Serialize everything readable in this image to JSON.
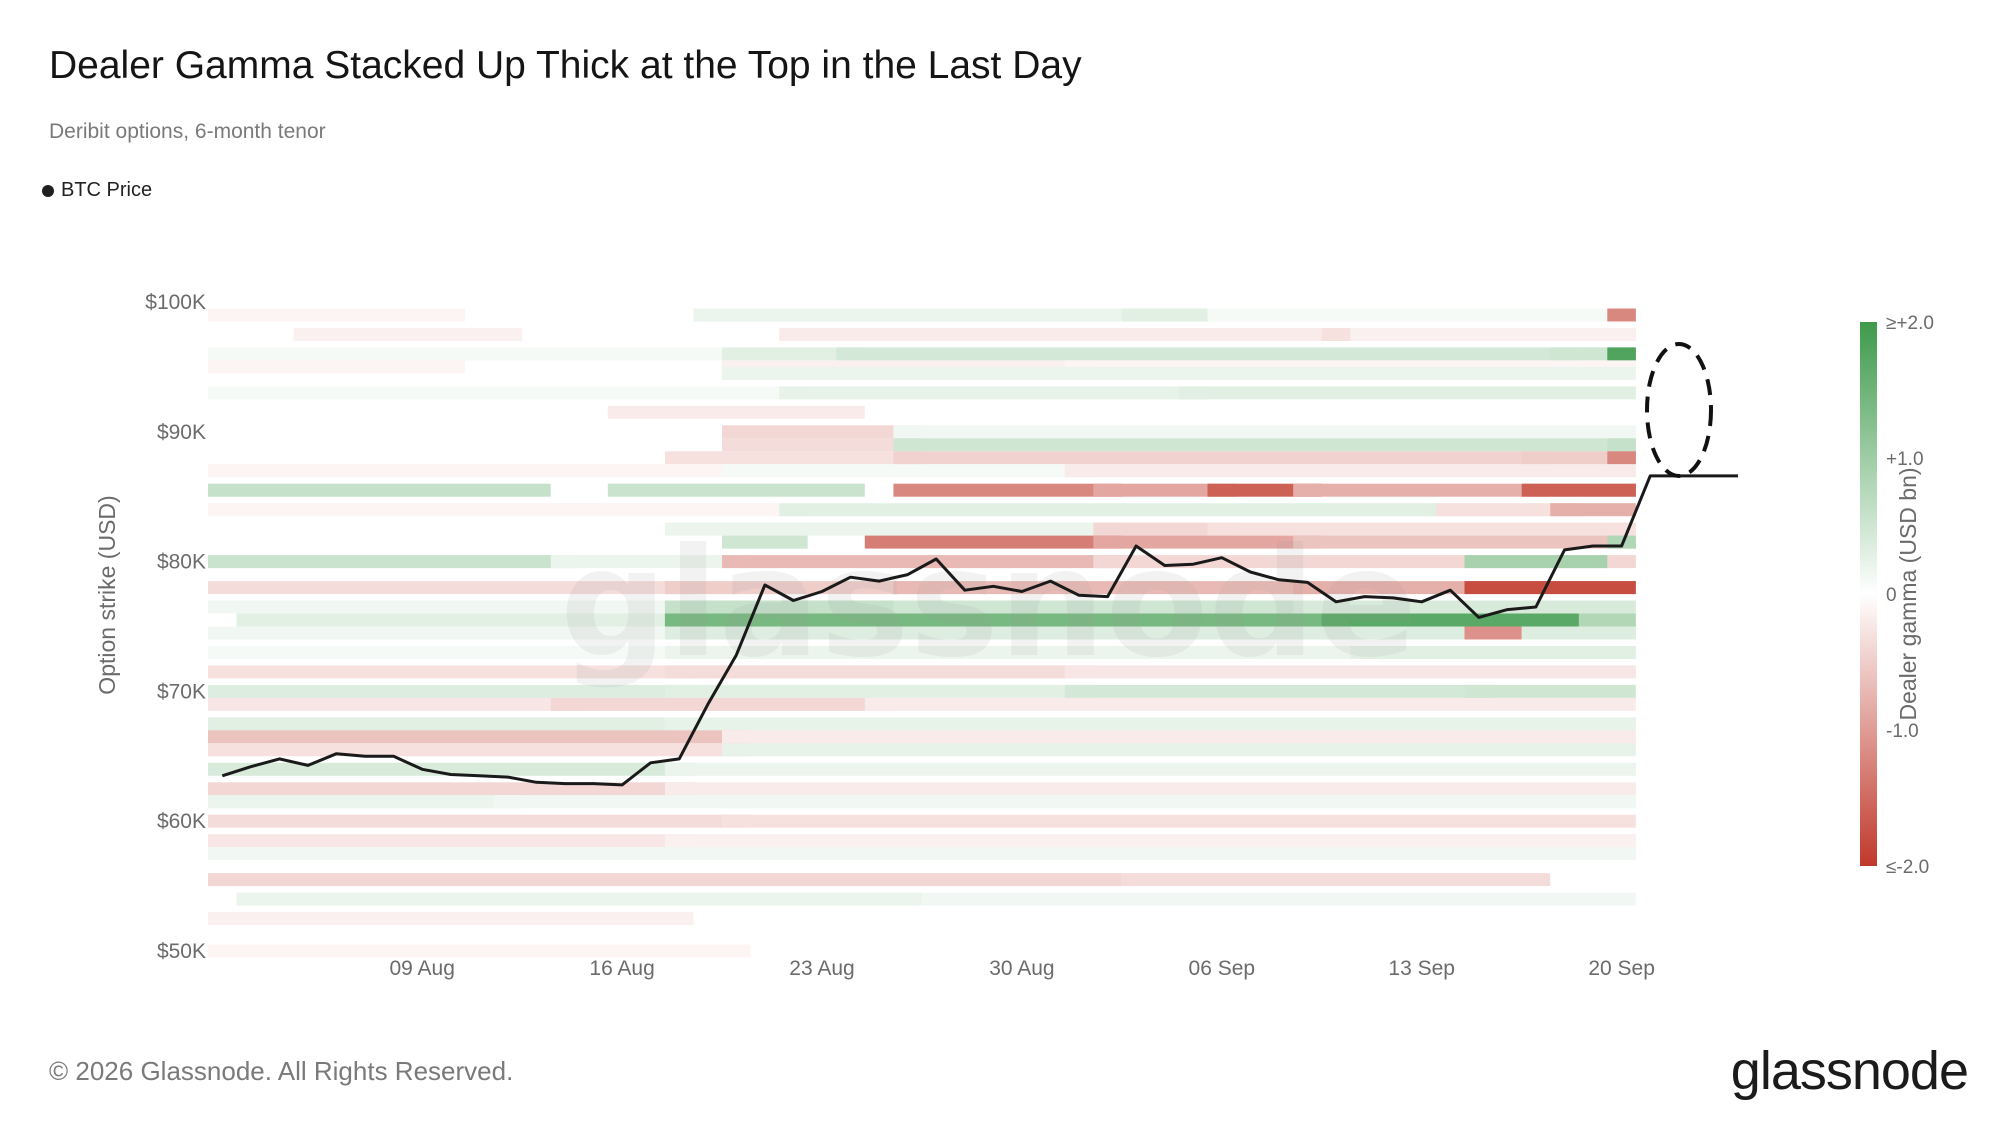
{
  "header": {
    "title": "Dealer Gamma Stacked Up Thick at the Top in the Last Day",
    "subtitle": "Deribit options, 6-month tenor"
  },
  "legend": {
    "label": "BTC Price",
    "color": "#1f1f1f"
  },
  "footer": {
    "copyright": "© 2026 Glassnode. All Rights Reserved.",
    "logo_text": "glassnode"
  },
  "watermark": "glassnode",
  "colors": {
    "positive": "#3e9a4b",
    "negative": "#c0392b",
    "neutral": "#ffffff",
    "price_line": "#1a1a1a"
  },
  "chart_data": {
    "type": "heatmap",
    "title": "Dealer Gamma Stacked Up Thick at the Top in the Last Day",
    "subtitle": "Deribit options, 6-month tenor",
    "ylabel": "Option strike (USD)",
    "ylim": [
      50000,
      100000
    ],
    "y_ticks": [
      "$50K",
      "$60K",
      "$70K",
      "$80K",
      "$90K",
      "$100K"
    ],
    "x_ticks": [
      "09 Aug",
      "16 Aug",
      "23 Aug",
      "30 Aug",
      "06 Sep",
      "13 Sep",
      "20 Sep"
    ],
    "x_range": [
      "2024-08-02",
      "2024-09-22"
    ],
    "colorbar": {
      "label": "Dealer gamma (USD bn)",
      "min": -2.0,
      "max": 2.0,
      "ticks": [
        "≥+2.0",
        "+1.0",
        "0",
        "-1.0",
        "≤-2.0"
      ]
    },
    "annotation": "dashed ellipse around top strikes on the last day",
    "series": [
      {
        "name": "BTC Price",
        "type": "line",
        "x": [
          "2024-08-02",
          "2024-08-03",
          "2024-08-04",
          "2024-08-05",
          "2024-08-06",
          "2024-08-07",
          "2024-08-08",
          "2024-08-09",
          "2024-08-10",
          "2024-08-11",
          "2024-08-12",
          "2024-08-13",
          "2024-08-14",
          "2024-08-15",
          "2024-08-16",
          "2024-08-17",
          "2024-08-18",
          "2024-08-19",
          "2024-08-20",
          "2024-08-21",
          "2024-08-22",
          "2024-08-23",
          "2024-08-24",
          "2024-08-25",
          "2024-08-26",
          "2024-08-27",
          "2024-08-28",
          "2024-08-29",
          "2024-08-30",
          "2024-08-31",
          "2024-09-01",
          "2024-09-02",
          "2024-09-03",
          "2024-09-04",
          "2024-09-05",
          "2024-09-06",
          "2024-09-07",
          "2024-09-08",
          "2024-09-09",
          "2024-09-10",
          "2024-09-11",
          "2024-09-12",
          "2024-09-13",
          "2024-09-14",
          "2024-09-15",
          "2024-09-16",
          "2024-09-17",
          "2024-09-18",
          "2024-09-19",
          "2024-09-20",
          "2024-09-21",
          "2024-09-22"
        ],
        "values": [
          63500,
          64200,
          64800,
          64300,
          65200,
          65000,
          65000,
          64000,
          63600,
          63500,
          63400,
          63000,
          62900,
          62900,
          62800,
          64500,
          64800,
          69000,
          72800,
          78200,
          77000,
          77700,
          78800,
          78500,
          79000,
          80200,
          77800,
          78100,
          77700,
          78500,
          77400,
          77300,
          81200,
          79700,
          79800,
          80300,
          79200,
          78600,
          78400,
          76900,
          77300,
          77200,
          76900,
          77800,
          75700,
          76300,
          76500,
          80900,
          81200,
          81200,
          86600,
          86600
        ]
      }
    ],
    "heatmap_rows": [
      {
        "strike": 99000,
        "segments": [
          [
            0,
            8,
            -0.1
          ],
          [
            17,
            31,
            0.2
          ],
          [
            32,
            35,
            0.3
          ],
          [
            35,
            48,
            0.1
          ],
          [
            49,
            49,
            -1.2
          ]
        ]
      },
      {
        "strike": 97500,
        "segments": [
          [
            3,
            10,
            -0.15
          ],
          [
            20,
            39,
            -0.2
          ],
          [
            39,
            40,
            -0.3
          ],
          [
            40,
            49,
            -0.15
          ]
        ]
      },
      {
        "strike": 96000,
        "segments": [
          [
            0,
            18,
            0.1
          ],
          [
            18,
            22,
            0.3
          ],
          [
            22,
            47,
            0.45
          ],
          [
            47,
            49,
            0.5
          ],
          [
            49,
            49,
            1.8
          ]
        ]
      },
      {
        "strike": 95000,
        "segments": [
          [
            0,
            8,
            -0.1
          ],
          [
            18,
            30,
            -0.15
          ],
          [
            30,
            49,
            -0.1
          ]
        ]
      },
      {
        "strike": 94500,
        "segments": [
          [
            18,
            49,
            0.2
          ]
        ]
      },
      {
        "strike": 93000,
        "segments": [
          [
            0,
            20,
            0.1
          ],
          [
            20,
            34,
            0.25
          ],
          [
            34,
            49,
            0.3
          ]
        ]
      },
      {
        "strike": 91500,
        "segments": [
          [
            14,
            22,
            -0.2
          ]
        ]
      },
      {
        "strike": 90000,
        "segments": [
          [
            18,
            24,
            -0.4
          ],
          [
            24,
            49,
            0.15
          ]
        ]
      },
      {
        "strike": 89000,
        "segments": [
          [
            18,
            24,
            -0.35
          ],
          [
            24,
            49,
            0.5
          ],
          [
            49,
            49,
            0.6
          ]
        ]
      },
      {
        "strike": 88000,
        "segments": [
          [
            16,
            24,
            -0.3
          ],
          [
            24,
            46,
            -0.45
          ],
          [
            46,
            49,
            -0.5
          ],
          [
            49,
            49,
            -1.2
          ]
        ]
      },
      {
        "strike": 87000,
        "segments": [
          [
            0,
            18,
            -0.1
          ],
          [
            18,
            30,
            0.1
          ],
          [
            30,
            49,
            -0.2
          ]
        ]
      },
      {
        "strike": 85500,
        "segments": [
          [
            0,
            11,
            0.6
          ],
          [
            14,
            22,
            0.55
          ],
          [
            24,
            31,
            -1.2
          ],
          [
            31,
            35,
            -0.9
          ],
          [
            35,
            38,
            -1.6
          ],
          [
            38,
            49,
            -0.8
          ],
          [
            46,
            49,
            -1.6
          ]
        ]
      },
      {
        "strike": 84000,
        "segments": [
          [
            0,
            20,
            -0.1
          ],
          [
            20,
            49,
            0.3
          ],
          [
            43,
            47,
            -0.3
          ],
          [
            47,
            49,
            -0.8
          ]
        ]
      },
      {
        "strike": 82500,
        "segments": [
          [
            16,
            31,
            0.2
          ],
          [
            31,
            35,
            -0.4
          ],
          [
            35,
            49,
            -0.3
          ]
        ]
      },
      {
        "strike": 81500,
        "segments": [
          [
            18,
            20,
            0.5
          ],
          [
            23,
            31,
            -1.3
          ],
          [
            31,
            38,
            -0.9
          ],
          [
            38,
            49,
            -0.6
          ],
          [
            49,
            49,
            0.8
          ]
        ]
      },
      {
        "strike": 80000,
        "segments": [
          [
            0,
            12,
            0.55
          ],
          [
            12,
            18,
            0.2
          ],
          [
            18,
            31,
            -0.7
          ],
          [
            31,
            49,
            -0.4
          ],
          [
            44,
            48,
            0.9
          ]
        ]
      },
      {
        "strike": 78000,
        "segments": [
          [
            0,
            16,
            -0.35
          ],
          [
            16,
            24,
            -0.5
          ],
          [
            24,
            38,
            -0.7
          ],
          [
            38,
            49,
            -0.8
          ],
          [
            44,
            49,
            -1.8
          ]
        ]
      },
      {
        "strike": 76500,
        "segments": [
          [
            0,
            16,
            0.15
          ],
          [
            16,
            24,
            0.6
          ],
          [
            24,
            38,
            0.5
          ],
          [
            38,
            49,
            0.4
          ]
        ]
      },
      {
        "strike": 75500,
        "segments": [
          [
            1,
            15,
            0.3
          ],
          [
            16,
            39,
            1.4
          ],
          [
            39,
            48,
            1.7
          ],
          [
            48,
            49,
            0.8
          ]
        ]
      },
      {
        "strike": 74500,
        "segments": [
          [
            0,
            16,
            0.15
          ],
          [
            16,
            49,
            0.35
          ],
          [
            44,
            45,
            -1.1
          ]
        ]
      },
      {
        "strike": 73000,
        "segments": [
          [
            0,
            16,
            0.1
          ],
          [
            16,
            40,
            0.2
          ],
          [
            40,
            49,
            0.3
          ]
        ]
      },
      {
        "strike": 71500,
        "segments": [
          [
            0,
            16,
            -0.3
          ],
          [
            16,
            30,
            -0.35
          ],
          [
            30,
            49,
            -0.25
          ]
        ]
      },
      {
        "strike": 70000,
        "segments": [
          [
            0,
            16,
            0.35
          ],
          [
            16,
            30,
            0.3
          ],
          [
            30,
            44,
            0.45
          ],
          [
            44,
            49,
            0.5
          ]
        ]
      },
      {
        "strike": 69000,
        "segments": [
          [
            0,
            12,
            -0.25
          ],
          [
            12,
            23,
            -0.4
          ],
          [
            23,
            49,
            -0.2
          ]
        ]
      },
      {
        "strike": 67500,
        "segments": [
          [
            0,
            15,
            0.3
          ],
          [
            16,
            49,
            0.25
          ]
        ]
      },
      {
        "strike": 66500,
        "segments": [
          [
            0,
            18,
            -0.6
          ],
          [
            18,
            49,
            -0.2
          ]
        ]
      },
      {
        "strike": 65500,
        "segments": [
          [
            0,
            18,
            -0.3
          ],
          [
            18,
            49,
            0.25
          ]
        ]
      },
      {
        "strike": 64000,
        "segments": [
          [
            0,
            16,
            0.4
          ],
          [
            16,
            49,
            0.2
          ]
        ]
      },
      {
        "strike": 62500,
        "segments": [
          [
            0,
            16,
            -0.4
          ],
          [
            16,
            49,
            -0.2
          ]
        ]
      },
      {
        "strike": 61500,
        "segments": [
          [
            0,
            10,
            0.2
          ],
          [
            10,
            49,
            0.15
          ]
        ]
      },
      {
        "strike": 60000,
        "segments": [
          [
            0,
            18,
            -0.35
          ],
          [
            18,
            49,
            -0.3
          ]
        ]
      },
      {
        "strike": 58500,
        "segments": [
          [
            0,
            16,
            -0.25
          ],
          [
            16,
            49,
            -0.15
          ]
        ]
      },
      {
        "strike": 57500,
        "segments": [
          [
            0,
            49,
            0.15
          ]
        ]
      },
      {
        "strike": 55500,
        "segments": [
          [
            0,
            31,
            -0.4
          ],
          [
            32,
            46,
            -0.35
          ]
        ]
      },
      {
        "strike": 54000,
        "segments": [
          [
            1,
            24,
            0.2
          ],
          [
            25,
            49,
            0.15
          ]
        ]
      },
      {
        "strike": 52500,
        "segments": [
          [
            0,
            16,
            -0.15
          ]
        ]
      },
      {
        "strike": 50000,
        "segments": [
          [
            0,
            18,
            -0.1
          ]
        ]
      }
    ]
  }
}
